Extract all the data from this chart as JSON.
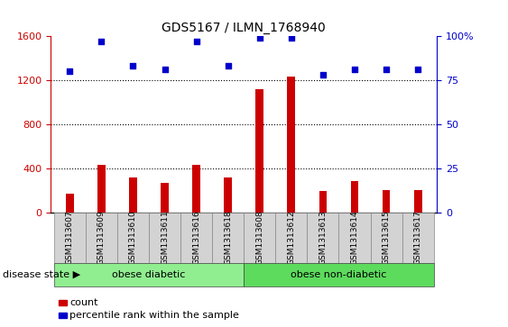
{
  "title": "GDS5167 / ILMN_1768940",
  "samples": [
    "GSM1313607",
    "GSM1313609",
    "GSM1313610",
    "GSM1313611",
    "GSM1313616",
    "GSM1313618",
    "GSM1313608",
    "GSM1313612",
    "GSM1313613",
    "GSM1313614",
    "GSM1313615",
    "GSM1313617"
  ],
  "counts": [
    170,
    430,
    320,
    270,
    430,
    320,
    1120,
    1230,
    195,
    285,
    200,
    205
  ],
  "percentiles_raw": [
    80,
    97,
    83,
    81,
    97,
    83,
    99,
    99,
    78,
    81,
    81,
    81
  ],
  "groups": [
    {
      "label": "obese diabetic",
      "start": 0,
      "end": 6,
      "color": "#90ee90"
    },
    {
      "label": "obese non-diabetic",
      "start": 6,
      "end": 12,
      "color": "#5ddb5d"
    }
  ],
  "ylim_left": [
    0,
    1600
  ],
  "ylim_right": [
    0,
    100
  ],
  "yticks_left": [
    0,
    400,
    800,
    1200,
    1600
  ],
  "yticks_right": [
    0,
    25,
    50,
    75,
    100
  ],
  "bar_color": "#cc0000",
  "dot_color": "#0000cc",
  "bg_color": "#ffffff",
  "cell_bg": "#d3d3d3",
  "grid_color": "#000000",
  "disease_state_label": "disease state",
  "legend_count": "count",
  "legend_percentile": "percentile rank within the sample",
  "bar_width": 0.25
}
